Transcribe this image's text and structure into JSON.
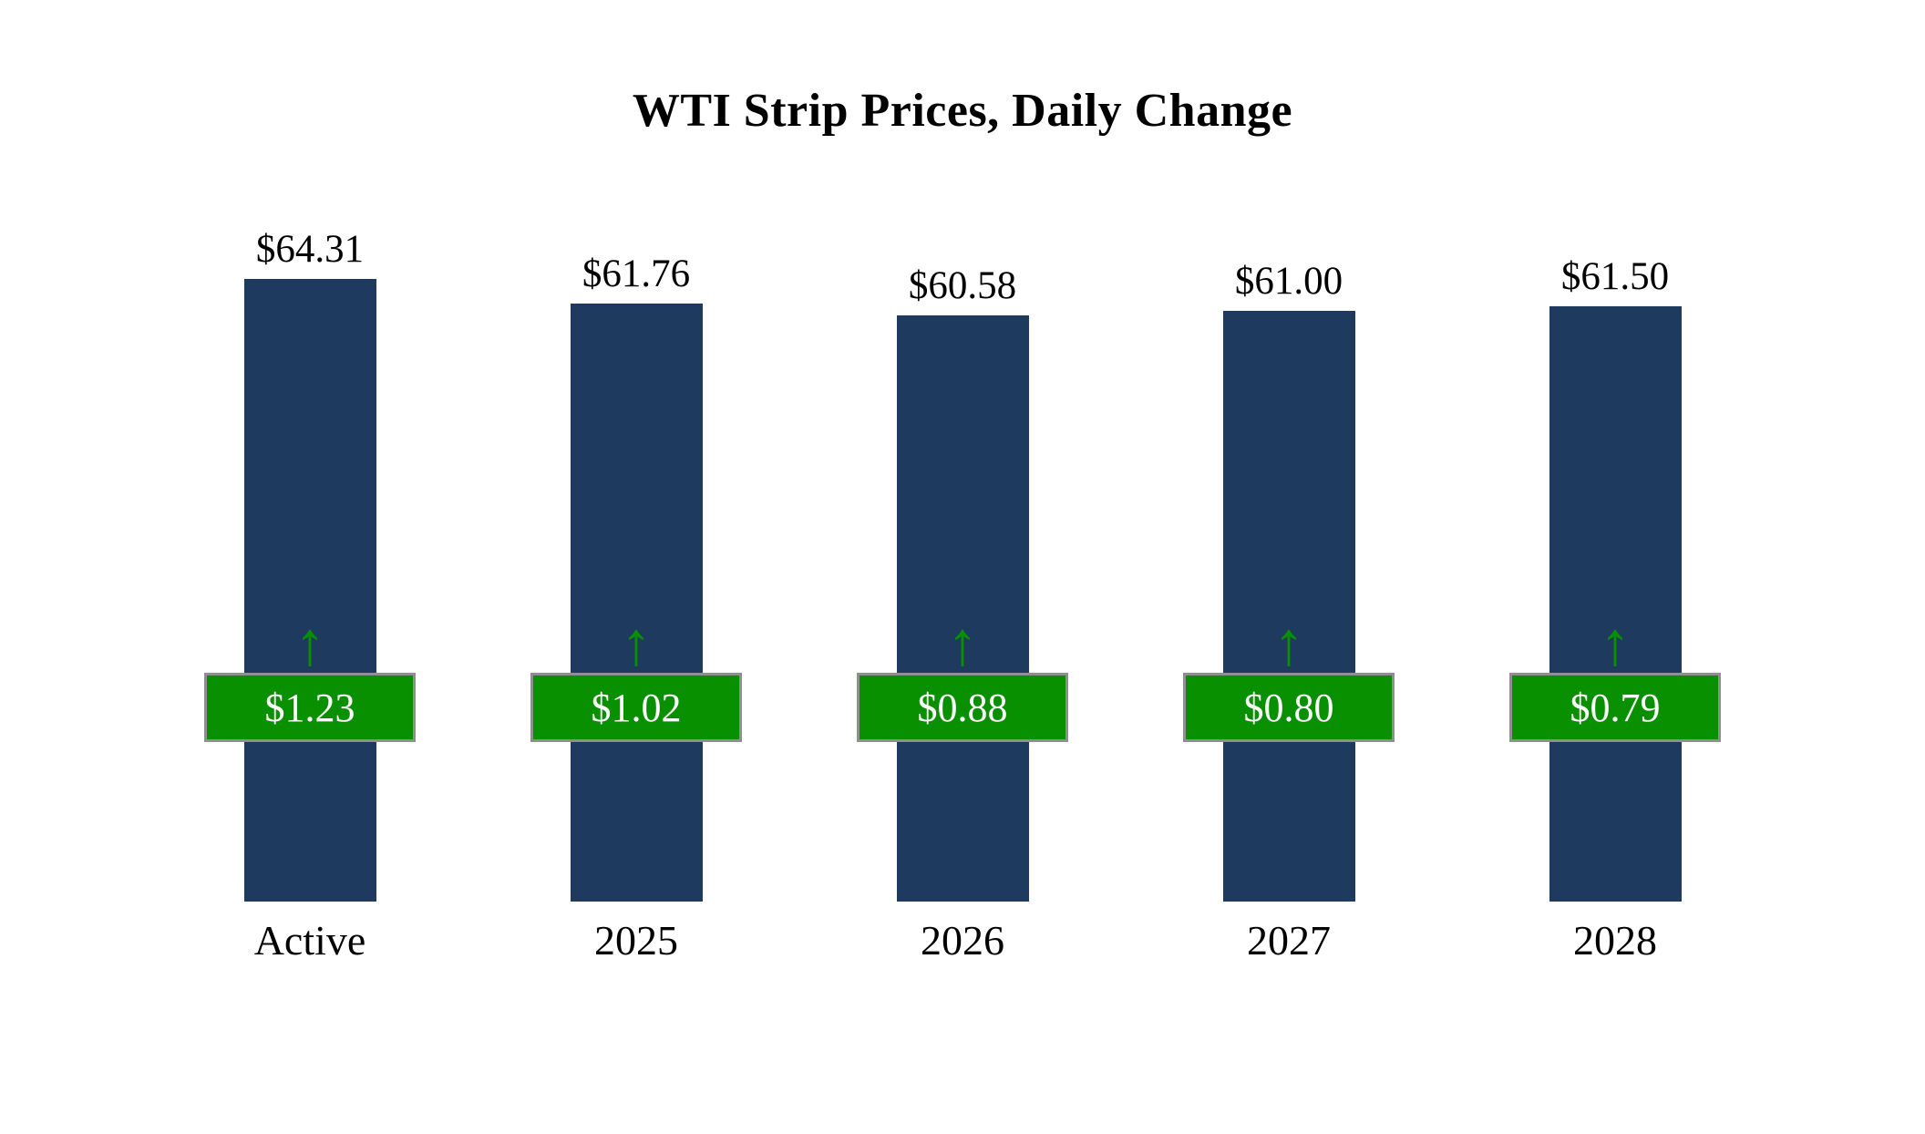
{
  "title": "WTI Strip Prices, Daily Change",
  "icons": {
    "up_arrow": "↑"
  },
  "colors": {
    "bar": "#1E3A5F",
    "badge": "#089000",
    "badge_border": "#8F8F8F",
    "badge_text": "#FFFFFF",
    "arrow": "#089000"
  },
  "chart_data": {
    "type": "bar",
    "title": "WTI Strip Prices, Daily Change",
    "categories": [
      "Active",
      "2025",
      "2026",
      "2027",
      "2028"
    ],
    "series": [
      {
        "name": "Strip Price",
        "values": [
          64.31,
          61.76,
          60.58,
          61.0,
          61.5
        ]
      },
      {
        "name": "Daily Change",
        "values": [
          1.23,
          1.02,
          0.88,
          0.8,
          0.79
        ]
      }
    ],
    "value_labels": [
      "$64.31",
      "$61.76",
      "$60.58",
      "$61.00",
      "$61.50"
    ],
    "change_labels": [
      "$1.23",
      "$1.02",
      "$0.88",
      "$0.80",
      "$0.79"
    ],
    "ylim": [
      0,
      65
    ],
    "grid": false,
    "legend": "none",
    "bar_direction": "up"
  }
}
